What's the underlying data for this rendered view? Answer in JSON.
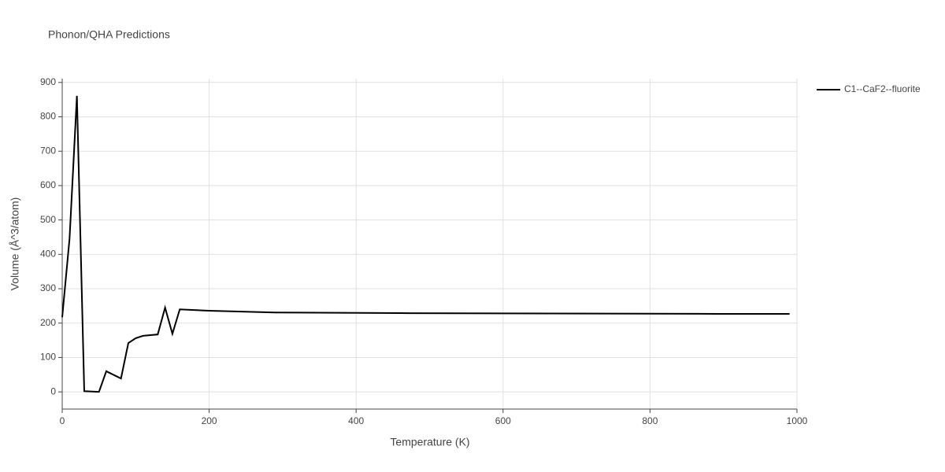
{
  "chart_data": {
    "type": "line",
    "title": "Phonon/QHA Predictions",
    "x_label": "Temperature (K)",
    "y_label": "Volume (Å^3/atom)",
    "x": [
      0,
      10,
      20,
      30,
      50,
      60,
      80,
      90,
      100,
      110,
      130,
      140,
      150,
      160,
      200,
      290,
      472,
      890,
      990
    ],
    "series": [
      {
        "name": "C1--CaF2--fluorite",
        "color": "#000000",
        "values": [
          217,
          446,
          861,
          2,
          0,
          60,
          39,
          142,
          156,
          163,
          167,
          245,
          169,
          240,
          236,
          231,
          229,
          227,
          227
        ]
      }
    ],
    "xlim": [
      0,
      1000
    ],
    "xticks": [
      0,
      200,
      400,
      600,
      800,
      1000
    ],
    "ylim": [
      -50,
      911
    ],
    "yticks": [
      0,
      100,
      200,
      300,
      400,
      500,
      600,
      700,
      800,
      900
    ],
    "grid": true,
    "legend": "right"
  }
}
